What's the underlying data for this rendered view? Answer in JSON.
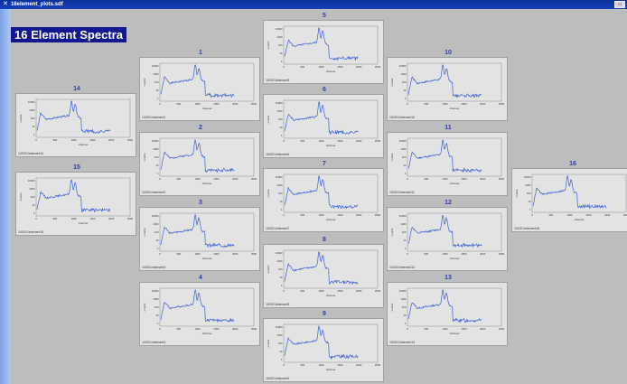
{
  "window": {
    "title": "16element_plots.sdf",
    "controls_label": "▭"
  },
  "heading": "16 Element Spectra",
  "axis": {
    "xlabel": "channel",
    "ylabel": "counts",
    "x_ticks": [
      "0",
      "500",
      "1000",
      "1500",
      "2000",
      "2500"
    ],
    "y_ticks": [
      "10000",
      "1000",
      "100",
      "10",
      "1"
    ]
  },
  "colors": {
    "trace": "#3a5fd0",
    "panel": "#e3e3e3",
    "heading_bg": "#12188f",
    "canvas": "#bdbdbd"
  },
  "panels": [
    {
      "id": "1",
      "label": "10GE1/element1"
    },
    {
      "id": "2",
      "label": "10GE1/element2"
    },
    {
      "id": "3",
      "label": "10GE1/element3"
    },
    {
      "id": "4",
      "label": "10GE1/element4"
    },
    {
      "id": "5",
      "label": "10GE1/element5"
    },
    {
      "id": "6",
      "label": "10GE1/element6"
    },
    {
      "id": "7",
      "label": "10GE1/element7"
    },
    {
      "id": "8",
      "label": "10GE1/element8"
    },
    {
      "id": "9",
      "label": "10GE1/element9"
    },
    {
      "id": "10",
      "label": "10GE1/element10"
    },
    {
      "id": "11",
      "label": "10GE1/element11"
    },
    {
      "id": "12",
      "label": "10GE1/element12"
    },
    {
      "id": "13",
      "label": "10GE1/element13"
    },
    {
      "id": "14",
      "label": "10GE1/element14"
    },
    {
      "id": "15",
      "label": "10GE1/element15"
    },
    {
      "id": "16",
      "label": "10GE1/element16"
    }
  ]
}
